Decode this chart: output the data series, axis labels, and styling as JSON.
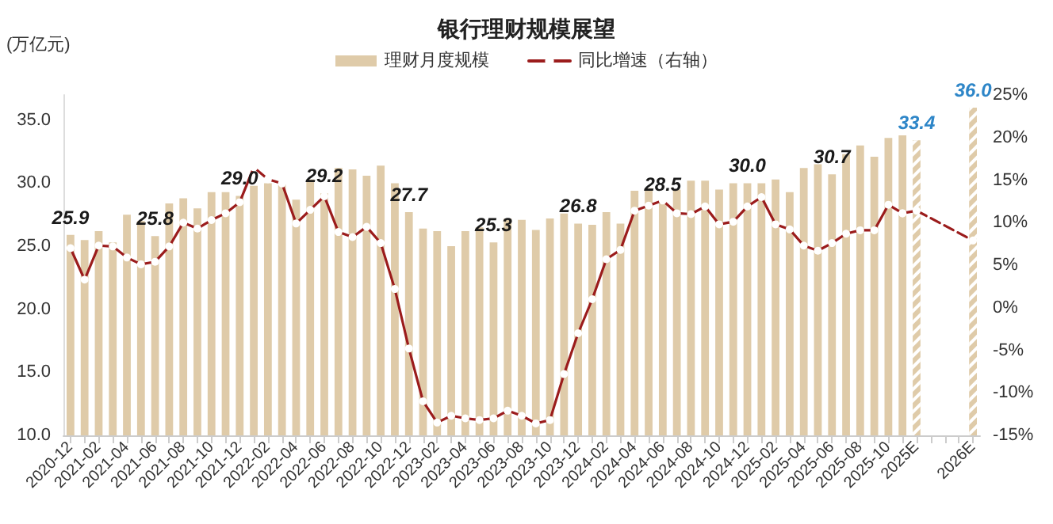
{
  "chart_data": {
    "type": "bar",
    "title": "银行理财规模展望",
    "ylabel": "(万亿元)",
    "legend": "top",
    "grid": false,
    "marker": "circle",
    "categories": [
      "2020-12",
      null,
      "2021-02",
      null,
      "2021-04",
      null,
      "2021-06",
      null,
      "2021-08",
      null,
      "2021-10",
      null,
      "2021-12",
      null,
      "2022-02",
      null,
      "2022-04",
      null,
      "2022-06",
      null,
      "2022-08",
      null,
      "2022-10",
      null,
      "2022-12",
      null,
      "2023-02",
      null,
      "2023-04",
      null,
      "2023-06",
      null,
      "2023-08",
      null,
      "2023-10",
      null,
      "2023-12",
      null,
      "2024-02",
      null,
      "2024-04",
      null,
      "2024-06",
      null,
      "2024-08",
      null,
      "2024-10",
      null,
      "2024-12",
      null,
      "2025-02",
      null,
      "2025-04",
      null,
      "2025-06",
      null,
      "2025-08",
      null,
      "2025-10",
      null,
      "2025E",
      null,
      null,
      null,
      "2026E"
    ],
    "ylim": [
      10,
      37
    ],
    "yticks": [
      {
        "value": 10,
        "label": "10.0"
      },
      {
        "value": 15,
        "label": "15.0"
      },
      {
        "value": 20,
        "label": "20.0"
      },
      {
        "value": 25,
        "label": "25.0"
      },
      {
        "value": 30,
        "label": "30.0"
      },
      {
        "value": 35,
        "label": "35.0"
      }
    ],
    "y2lim": [
      -15,
      25
    ],
    "y2ticks": [
      {
        "value": -15,
        "label": "-15%"
      },
      {
        "value": -10,
        "label": "-10%"
      },
      {
        "value": -5,
        "label": "-5%"
      },
      {
        "value": 0,
        "label": "0%"
      },
      {
        "value": 5,
        "label": "5%"
      },
      {
        "value": 10,
        "label": "10%"
      },
      {
        "value": 15,
        "label": "15%"
      },
      {
        "value": 20,
        "label": "20%"
      },
      {
        "value": 25,
        "label": "25%"
      }
    ],
    "series": [
      {
        "name": "理财月度规模",
        "color": "#dfcba9",
        "values": [
          25.9,
          25.5,
          26.2,
          25.3,
          27.5,
          27.0,
          25.8,
          28.4,
          28.8,
          28.0,
          29.3,
          29.3,
          29.0,
          29.8,
          30.0,
          29.9,
          28.7,
          30.3,
          29.2,
          31.2,
          31.1,
          30.6,
          31.4,
          30.0,
          27.7,
          26.4,
          26.2,
          25.0,
          26.2,
          26.5,
          25.3,
          27.2,
          27.1,
          26.3,
          27.2,
          27.6,
          26.8,
          26.7,
          27.7,
          26.8,
          29.4,
          29.6,
          28.5,
          29.5,
          30.2,
          30.2,
          29.5,
          30.0,
          30.0,
          30.0,
          30.3,
          29.3,
          31.2,
          31.5,
          30.7,
          32.3,
          33.0,
          32.1,
          33.6,
          33.8,
          null,
          null,
          null,
          null,
          null
        ],
        "value_labels": [
          "25.9",
          null,
          null,
          null,
          null,
          null,
          "25.8",
          null,
          null,
          null,
          null,
          null,
          "29.0",
          null,
          null,
          null,
          null,
          null,
          "29.2",
          null,
          null,
          null,
          null,
          null,
          "27.7",
          null,
          null,
          null,
          null,
          null,
          "25.3",
          null,
          null,
          null,
          null,
          null,
          "26.8",
          null,
          null,
          null,
          null,
          null,
          "28.5",
          null,
          null,
          null,
          null,
          null,
          "30.0",
          null,
          null,
          null,
          null,
          null,
          "30.7",
          null,
          null,
          null,
          null,
          null,
          null,
          null,
          null,
          null,
          null
        ]
      },
      {
        "color": "#dfcba9",
        "values": [
          null,
          null,
          null,
          null,
          null,
          null,
          null,
          null,
          null,
          null,
          null,
          null,
          null,
          null,
          null,
          null,
          null,
          null,
          null,
          null,
          null,
          null,
          null,
          null,
          null,
          null,
          null,
          null,
          null,
          null,
          null,
          null,
          null,
          null,
          null,
          null,
          null,
          null,
          null,
          null,
          null,
          null,
          null,
          null,
          null,
          null,
          null,
          null,
          null,
          null,
          null,
          null,
          null,
          null,
          null,
          null,
          null,
          null,
          null,
          null,
          33.4,
          null,
          null,
          null,
          36.0
        ],
        "value_labels": [
          null,
          null,
          null,
          null,
          null,
          null,
          null,
          null,
          null,
          null,
          null,
          null,
          null,
          null,
          null,
          null,
          null,
          null,
          null,
          null,
          null,
          null,
          null,
          null,
          null,
          null,
          null,
          null,
          null,
          null,
          null,
          null,
          null,
          null,
          null,
          null,
          null,
          null,
          null,
          null,
          null,
          null,
          null,
          null,
          null,
          null,
          null,
          null,
          null,
          null,
          null,
          null,
          null,
          null,
          null,
          null,
          null,
          null,
          null,
          null,
          "33.4",
          null,
          null,
          null,
          "36.0"
        ]
      },
      {
        "name": "同比增速（右轴）",
        "type": "line",
        "axis": "y2",
        "color": "#9b1c1c",
        "line_style": "solid",
        "values": [
          7.0,
          3.3,
          7.3,
          7.2,
          5.9,
          5.1,
          5.4,
          7.2,
          10.0,
          9.3,
          10.3,
          11.1,
          12.4,
          16.5,
          15.1,
          14.6,
          9.9,
          11.5,
          13.1,
          8.9,
          8.3,
          9.5,
          7.6,
          2.2,
          -4.8,
          -11.0,
          -13.5,
          -12.7,
          -13.0,
          -13.2,
          -13.0,
          -12.1,
          -12.7,
          -13.6,
          -13.2,
          -7.8,
          -3.0,
          1.0,
          5.7,
          6.8,
          11.4,
          12.0,
          12.6,
          11.1,
          11.0,
          11.9,
          9.8,
          10.1,
          11.9,
          13.0,
          9.8,
          9.2,
          7.3,
          6.7,
          7.6,
          8.7,
          9.1,
          9.1,
          12.1,
          11.1,
          null,
          null,
          null,
          null,
          null
        ]
      },
      {
        "type": "line",
        "axis": "y2",
        "color": "#9b1c1c",
        "line_style": "dashed",
        "values": [
          null,
          null,
          null,
          null,
          null,
          null,
          null,
          null,
          null,
          null,
          null,
          null,
          null,
          null,
          null,
          null,
          null,
          null,
          null,
          null,
          null,
          null,
          null,
          null,
          null,
          null,
          null,
          null,
          null,
          null,
          null,
          null,
          null,
          null,
          null,
          null,
          null,
          null,
          null,
          null,
          null,
          null,
          null,
          null,
          null,
          null,
          null,
          null,
          null,
          null,
          null,
          null,
          null,
          null,
          null,
          null,
          null,
          null,
          null,
          11.1,
          11.4,
          null,
          null,
          null,
          7.9
        ]
      }
    ]
  }
}
